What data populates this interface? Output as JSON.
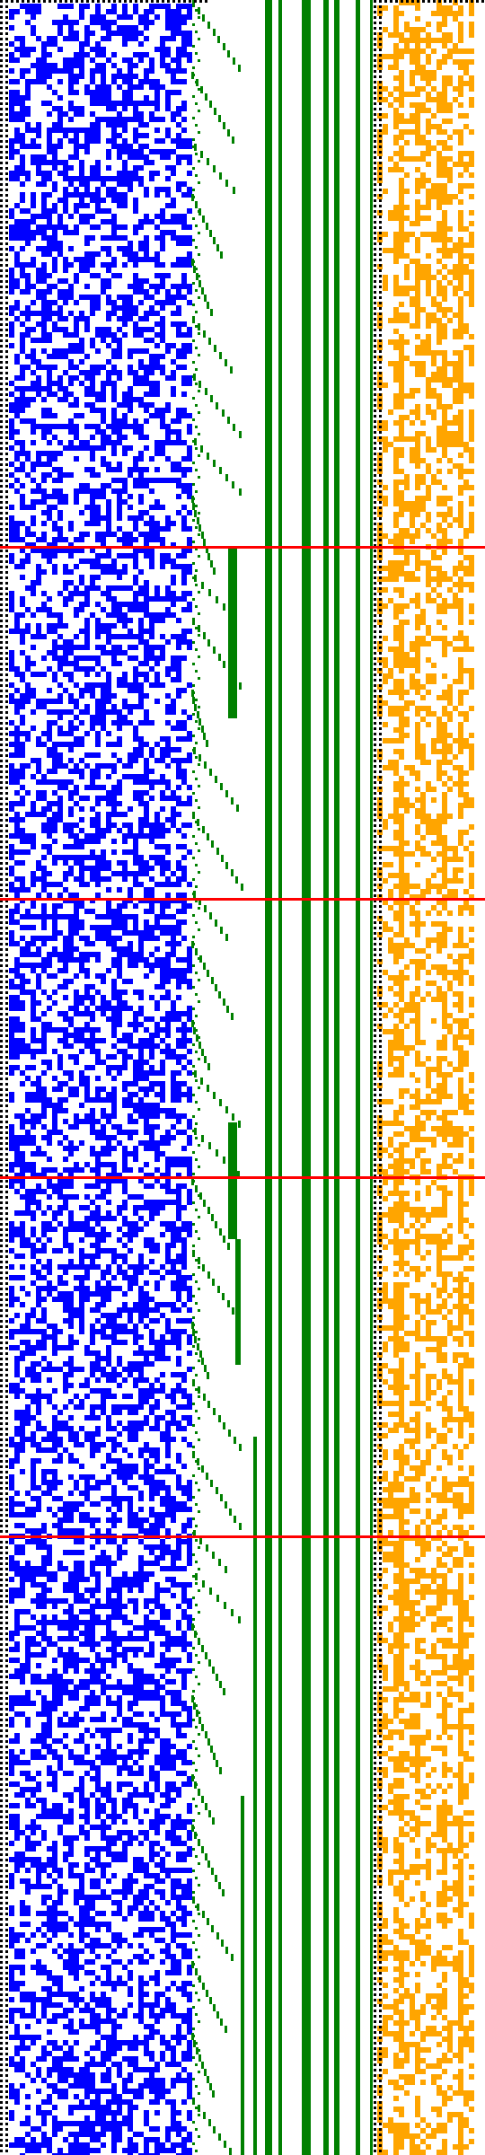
{
  "colors": {
    "background": "#ffffff",
    "border_dots": "#000000",
    "random_bits_panel": "#0000ff",
    "staircase_and_bars": "#008000",
    "right_bits_panel": "#ffa500",
    "separators": "#ff0000"
  },
  "panels": {
    "left_bits": {
      "name": "blue-random-bit-matrix",
      "density": 0.5
    },
    "staircase": {
      "name": "green-staircase-pattern"
    },
    "bars": {
      "name": "green-vertical-bars"
    },
    "right_bits": {
      "name": "orange-bit-matrix",
      "density": 0.55
    }
  },
  "separators": {
    "count": 4
  },
  "text": {
    "visible_text": ""
  }
}
